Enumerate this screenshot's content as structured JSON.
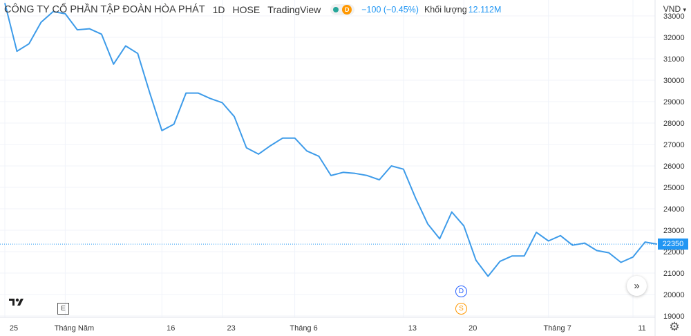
{
  "header": {
    "symbol_name": "CÔNG TY CỔ PHẦN TẬP ĐOÀN HÒA PHÁT",
    "interval": "1D",
    "exchange": "HOSE",
    "provider": "TradingView",
    "badge_letter": "D",
    "change": "−100 (−0.45%)",
    "volume_label": "Khối lượng",
    "volume_value": "12.112M"
  },
  "currency": "VND",
  "price_label": "22350",
  "markers": {
    "dividend": "D",
    "split": "S"
  },
  "logo_text": "17",
  "event_box": "E",
  "nav_icon": "»",
  "settings_icon": "⚙",
  "colors": {
    "line": "#3d9be9",
    "price_tag": "#2196f3",
    "grid": "#f0f3fa"
  },
  "chart_data": {
    "type": "line",
    "title": "",
    "xlabel": "",
    "ylabel": "",
    "ylim": [
      19000,
      33500
    ],
    "y_ticks": [
      19000,
      20000,
      21000,
      22000,
      23000,
      24000,
      25000,
      26000,
      27000,
      28000,
      29000,
      30000,
      31000,
      32000,
      33000
    ],
    "x_ticks": [
      "25",
      "Tháng Năm",
      "16",
      "23",
      "Tháng 6",
      "13",
      "20",
      "Tháng 7",
      "11"
    ],
    "x_tick_index": [
      0,
      5,
      13,
      18,
      24,
      33,
      38,
      45,
      52
    ],
    "grid": true,
    "current_price": 22350,
    "series": [
      {
        "values": [
          33600,
          31350,
          31700,
          32700,
          33200,
          33100,
          32350,
          32400,
          32150,
          30750,
          31600,
          31250,
          29400,
          27650,
          27950,
          29400,
          29400,
          29150,
          28950,
          28300,
          26850,
          26550,
          26950,
          27300,
          27300,
          26700,
          26450,
          25550,
          25700,
          25650,
          25550,
          25350,
          26000,
          25850,
          24500,
          23300,
          22600,
          23850,
          23200,
          21600,
          20850,
          21550,
          21800,
          21800,
          22900,
          22500,
          22750,
          22300,
          22400,
          22050,
          21950,
          21500,
          21750,
          22450,
          22350
        ]
      }
    ]
  }
}
